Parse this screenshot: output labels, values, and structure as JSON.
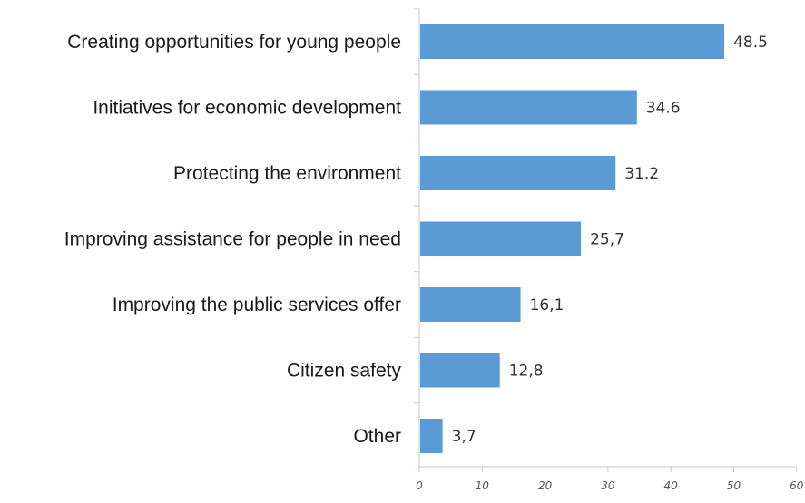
{
  "chart_data": {
    "type": "bar",
    "orientation": "horizontal",
    "title": "",
    "xlabel": "",
    "ylabel": "",
    "categories": [
      "Creating opportunities for young people",
      "Initiatives for economic development",
      "Protecting the environment",
      "Improving assistance for people in need",
      "Improving the public services offer",
      "Citizen safety",
      "Other"
    ],
    "values": [
      48.5,
      34.6,
      31.2,
      25.7,
      16.1,
      12.8,
      3.7
    ],
    "value_labels": [
      "48.5",
      "34.6",
      "31.2",
      "25,7",
      "16,1",
      "12,8",
      "3,7"
    ],
    "xlim": [
      0,
      60
    ],
    "x_ticks": [
      0,
      10,
      20,
      30,
      40,
      50,
      60
    ],
    "grid": false,
    "legend": "none",
    "bar_color": "#5b9bd5"
  }
}
